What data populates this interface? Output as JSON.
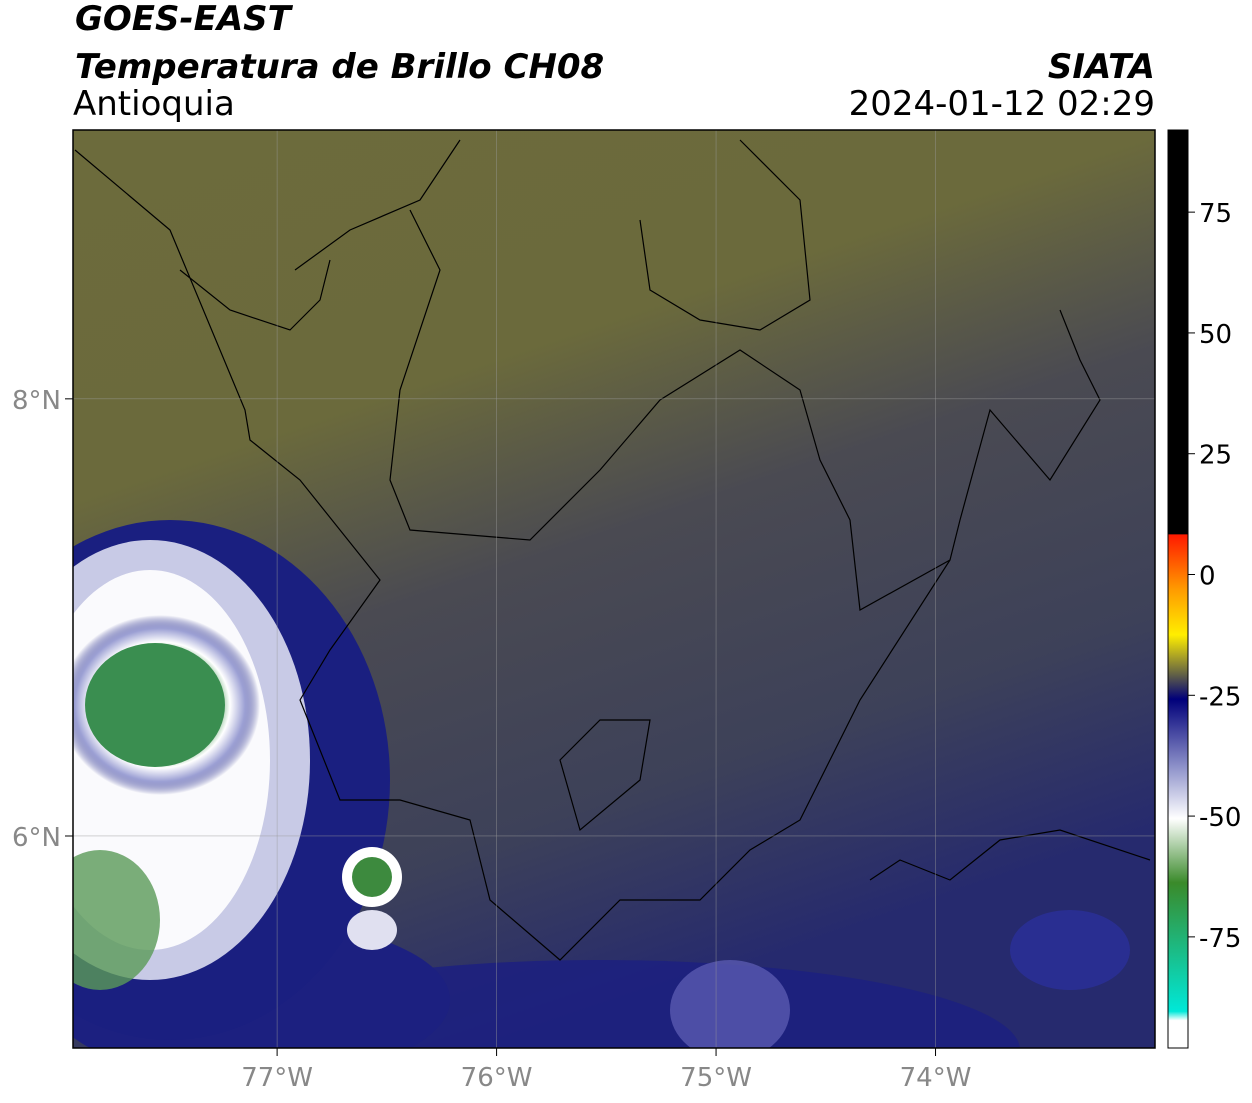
{
  "header": {
    "line1": "GOES-EAST",
    "line2": "Temperatura de Brillo CH08",
    "region": "Antioquia",
    "source": "SIATA",
    "datetime": "2024-01-12 02:29"
  },
  "map": {
    "xlim": [
      -77.93,
      -73.0
    ],
    "ylim": [
      5.03,
      9.23
    ],
    "xticks": [
      {
        "value": -77,
        "label": "77°W"
      },
      {
        "value": -76,
        "label": "76°W"
      },
      {
        "value": -75,
        "label": "75°W"
      },
      {
        "value": -74,
        "label": "74°W"
      }
    ],
    "yticks": [
      {
        "value": 8,
        "label": "8°N"
      },
      {
        "value": 6,
        "label": "6°N"
      }
    ],
    "grid": true
  },
  "colorbar": {
    "lim": [
      -98,
      92
    ],
    "ticks": [
      75,
      50,
      25,
      0,
      -25,
      -50,
      -75
    ]
  }
}
